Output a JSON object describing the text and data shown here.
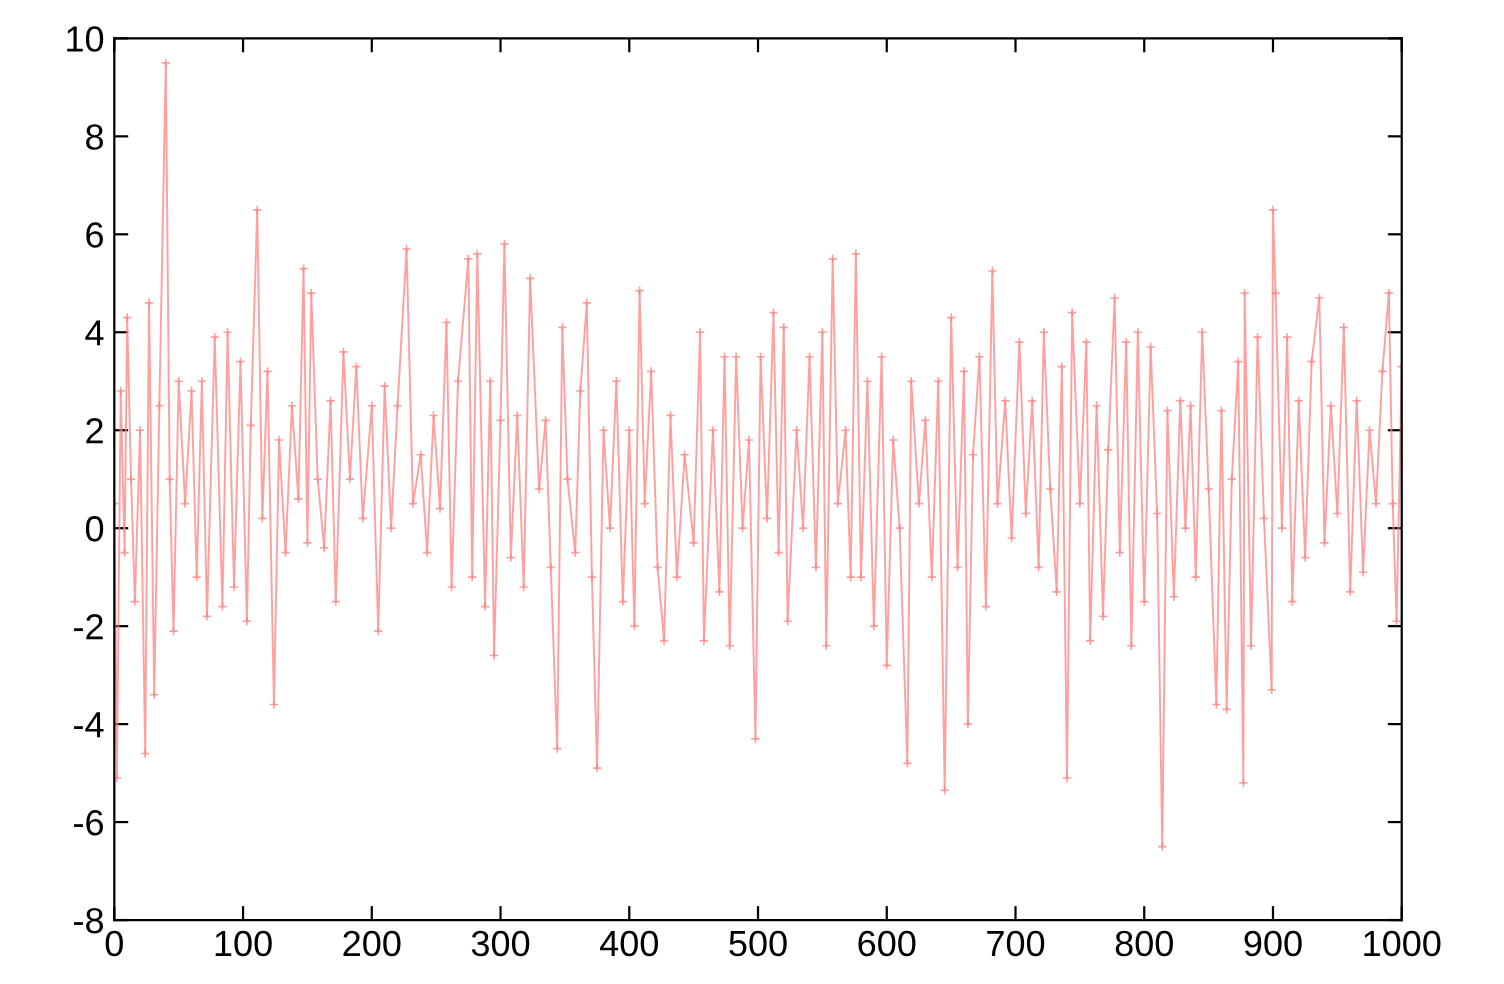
{
  "chart_data": {
    "type": "line",
    "marker": "cross",
    "line_style": "solid",
    "grid": false,
    "xlim": [
      0,
      1000
    ],
    "xticks": [
      0,
      100,
      200,
      300,
      400,
      500,
      600,
      700,
      800,
      900,
      1000
    ],
    "ylim": [
      -8,
      10
    ],
    "yticks": [
      -8,
      -6,
      -4,
      -2,
      0,
      2,
      4,
      6,
      8,
      10
    ],
    "x": [
      0,
      2,
      5,
      8,
      10,
      13,
      16,
      20,
      24,
      27,
      31,
      35,
      40,
      43,
      46,
      50,
      55,
      60,
      64,
      68,
      72,
      78,
      84,
      88,
      93,
      98,
      103,
      106,
      111,
      115,
      119,
      124,
      128,
      133,
      138,
      143,
      147,
      150,
      153,
      158,
      163,
      168,
      172,
      178,
      183,
      188,
      193,
      200,
      205,
      210,
      215,
      220,
      227,
      232,
      238,
      243,
      248,
      253,
      258,
      262,
      267,
      275,
      278,
      282,
      288,
      292,
      295,
      300,
      303,
      308,
      313,
      318,
      323,
      330,
      335,
      339,
      344,
      348,
      352,
      358,
      362,
      367,
      371,
      375,
      380,
      385,
      390,
      395,
      400,
      404,
      408,
      412,
      417,
      422,
      427,
      432,
      437,
      443,
      450,
      455,
      458,
      465,
      470,
      474,
      478,
      483,
      488,
      493,
      498,
      502,
      507,
      512,
      516,
      520,
      523,
      530,
      535,
      540,
      545,
      550,
      553,
      558,
      562,
      568,
      572,
      576,
      580,
      585,
      590,
      596,
      600,
      605,
      610,
      616,
      619,
      625,
      630,
      635,
      640,
      645,
      650,
      655,
      660,
      663,
      667,
      672,
      677,
      682,
      686,
      692,
      697,
      703,
      708,
      713,
      718,
      722,
      727,
      732,
      736,
      740,
      744,
      750,
      755,
      758,
      763,
      768,
      772,
      777,
      781,
      786,
      790,
      795,
      800,
      805,
      810,
      814,
      818,
      823,
      828,
      832,
      836,
      840,
      845,
      850,
      856,
      860,
      864,
      868,
      873,
      877,
      878,
      883,
      888,
      893,
      899,
      900,
      902,
      907,
      911,
      915,
      920,
      925,
      930,
      936,
      940,
      945,
      950,
      955,
      960,
      965,
      970,
      975,
      980,
      985,
      990,
      993,
      996,
      1000
    ],
    "series": [
      {
        "color": "#ff8080",
        "values": [
          0.5,
          -5.1,
          2.8,
          -0.5,
          4.3,
          1.0,
          -1.5,
          2.0,
          -4.6,
          4.6,
          -3.4,
          2.5,
          9.5,
          1.0,
          -2.1,
          3.0,
          0.5,
          2.8,
          -1.0,
          3.0,
          -1.8,
          3.9,
          -1.6,
          4.0,
          -1.2,
          3.4,
          -1.9,
          2.1,
          6.5,
          0.2,
          3.2,
          -3.6,
          1.8,
          -0.5,
          2.5,
          0.6,
          5.3,
          -0.3,
          4.8,
          1.0,
          -0.4,
          2.6,
          -1.5,
          3.6,
          1.0,
          3.3,
          0.2,
          2.5,
          -2.1,
          2.9,
          0.0,
          2.5,
          5.7,
          0.5,
          1.5,
          -0.5,
          2.3,
          0.4,
          4.2,
          -1.2,
          3.0,
          5.5,
          -1.0,
          5.6,
          -1.6,
          3.0,
          -2.6,
          2.2,
          5.8,
          -0.6,
          2.3,
          -1.2,
          5.1,
          0.8,
          2.2,
          -0.8,
          -4.5,
          4.1,
          1.0,
          -0.5,
          2.8,
          4.6,
          -1.0,
          -4.9,
          2.0,
          0.0,
          3.0,
          -1.5,
          2.0,
          -2.0,
          4.85,
          0.5,
          3.2,
          -0.8,
          -2.3,
          2.3,
          -1.0,
          1.5,
          -0.3,
          4.0,
          -2.3,
          2.0,
          -1.3,
          3.5,
          -2.4,
          3.5,
          0.0,
          1.8,
          -4.3,
          3.5,
          0.2,
          4.4,
          -0.5,
          4.1,
          -1.9,
          2.0,
          0.0,
          3.5,
          -0.8,
          4.0,
          -2.4,
          5.5,
          0.5,
          2.0,
          -1.0,
          5.6,
          -1.0,
          3.0,
          -2.0,
          3.5,
          -2.8,
          1.8,
          0.0,
          -4.8,
          3.0,
          0.5,
          2.2,
          -1.0,
          3.0,
          -5.35,
          4.3,
          -0.8,
          3.2,
          -4.0,
          1.5,
          3.5,
          -1.6,
          5.25,
          0.5,
          2.6,
          -0.2,
          3.8,
          0.3,
          2.6,
          -0.8,
          4.0,
          0.8,
          -1.3,
          3.3,
          -5.1,
          4.4,
          0.5,
          3.8,
          -2.3,
          2.5,
          -1.8,
          1.6,
          4.7,
          -0.5,
          3.8,
          -2.4,
          4.0,
          -1.5,
          3.7,
          0.3,
          -6.5,
          2.4,
          -1.4,
          2.6,
          0.0,
          2.5,
          -1.0,
          4.0,
          0.8,
          -3.6,
          2.4,
          -3.7,
          1.0,
          3.4,
          -5.2,
          4.8,
          -2.4,
          3.9,
          0.2,
          -3.3,
          6.5,
          4.8,
          0.0,
          3.9,
          -1.5,
          2.6,
          -0.6,
          3.4,
          4.7,
          -0.3,
          2.5,
          0.3,
          4.1,
          -1.3,
          2.6,
          -0.9,
          2.0,
          0.5,
          3.2,
          4.8,
          0.5,
          -1.9,
          3.3
        ]
      }
    ]
  }
}
